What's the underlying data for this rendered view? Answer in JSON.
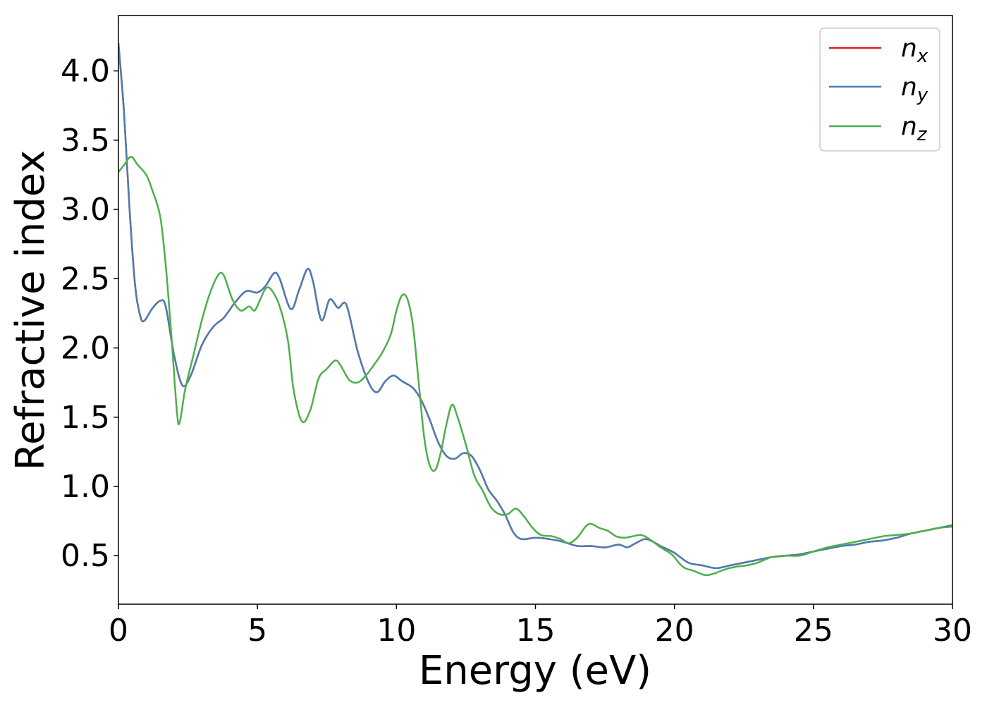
{
  "chart_data": {
    "type": "line",
    "title": "",
    "xlabel": "Energy (eV)",
    "ylabel": "Refractive index",
    "xlim": [
      0,
      30
    ],
    "ylim": [
      0.15,
      4.4
    ],
    "xticks": [
      0,
      5,
      10,
      15,
      20,
      25,
      30
    ],
    "xtick_labels": [
      "0",
      "5",
      "10",
      "15",
      "20",
      "25",
      "30"
    ],
    "yticks": [
      0.5,
      1.0,
      1.5,
      2.0,
      2.5,
      3.0,
      3.5,
      4.0
    ],
    "ytick_labels": [
      "0.5",
      "1.0",
      "1.5",
      "2.0",
      "2.5",
      "3.0",
      "3.5",
      "4.0"
    ],
    "grid": false,
    "legend_position": "top-right",
    "series": [
      {
        "name": "n_x",
        "legend_base": "n",
        "legend_sub": "x",
        "color": "#e41a1c",
        "points": [
          [
            0,
            4.2
          ],
          [
            0.2,
            3.7
          ],
          [
            0.4,
            3.0
          ],
          [
            0.6,
            2.45
          ],
          [
            0.8,
            2.22
          ],
          [
            0.95,
            2.2
          ],
          [
            1.2,
            2.28
          ],
          [
            1.5,
            2.34
          ],
          [
            1.7,
            2.3
          ],
          [
            2.0,
            1.95
          ],
          [
            2.3,
            1.73
          ],
          [
            2.6,
            1.8
          ],
          [
            3.0,
            2.02
          ],
          [
            3.4,
            2.15
          ],
          [
            3.8,
            2.22
          ],
          [
            4.2,
            2.33
          ],
          [
            4.6,
            2.41
          ],
          [
            5.0,
            2.4
          ],
          [
            5.3,
            2.45
          ],
          [
            5.6,
            2.54
          ],
          [
            5.8,
            2.5
          ],
          [
            6.2,
            2.28
          ],
          [
            6.5,
            2.42
          ],
          [
            6.8,
            2.57
          ],
          [
            7.0,
            2.48
          ],
          [
            7.3,
            2.2
          ],
          [
            7.6,
            2.35
          ],
          [
            7.9,
            2.29
          ],
          [
            8.2,
            2.31
          ],
          [
            8.6,
            1.98
          ],
          [
            9.0,
            1.75
          ],
          [
            9.3,
            1.68
          ],
          [
            9.6,
            1.76
          ],
          [
            9.9,
            1.8
          ],
          [
            10.2,
            1.76
          ],
          [
            10.6,
            1.71
          ],
          [
            10.9,
            1.62
          ],
          [
            11.2,
            1.48
          ],
          [
            11.5,
            1.32
          ],
          [
            11.8,
            1.22
          ],
          [
            12.1,
            1.2
          ],
          [
            12.4,
            1.24
          ],
          [
            12.7,
            1.22
          ],
          [
            13.0,
            1.12
          ],
          [
            13.3,
            0.98
          ],
          [
            13.6,
            0.9
          ],
          [
            13.9,
            0.8
          ],
          [
            14.2,
            0.67
          ],
          [
            14.5,
            0.62
          ],
          [
            15.0,
            0.63
          ],
          [
            15.5,
            0.62
          ],
          [
            16.0,
            0.6
          ],
          [
            16.5,
            0.57
          ],
          [
            17.0,
            0.57
          ],
          [
            17.5,
            0.56
          ],
          [
            18.0,
            0.58
          ],
          [
            18.3,
            0.56
          ],
          [
            18.6,
            0.59
          ],
          [
            19.0,
            0.62
          ],
          [
            19.5,
            0.57
          ],
          [
            20.0,
            0.52
          ],
          [
            20.5,
            0.45
          ],
          [
            21.0,
            0.43
          ],
          [
            21.5,
            0.41
          ],
          [
            22.0,
            0.43
          ],
          [
            22.5,
            0.45
          ],
          [
            23.0,
            0.47
          ],
          [
            23.5,
            0.49
          ],
          [
            24.0,
            0.5
          ],
          [
            24.5,
            0.51
          ],
          [
            25.0,
            0.53
          ],
          [
            25.5,
            0.55
          ],
          [
            26.0,
            0.57
          ],
          [
            26.5,
            0.58
          ],
          [
            27.0,
            0.6
          ],
          [
            27.5,
            0.61
          ],
          [
            28.0,
            0.63
          ],
          [
            28.5,
            0.66
          ],
          [
            29.0,
            0.68
          ],
          [
            29.5,
            0.7
          ],
          [
            30.0,
            0.72
          ]
        ]
      },
      {
        "name": "n_y",
        "legend_base": "n",
        "legend_sub": "y",
        "color": "#4a7eb4",
        "points": [
          [
            0,
            4.2
          ],
          [
            0.2,
            3.7
          ],
          [
            0.4,
            3.0
          ],
          [
            0.6,
            2.45
          ],
          [
            0.8,
            2.22
          ],
          [
            0.95,
            2.2
          ],
          [
            1.2,
            2.28
          ],
          [
            1.5,
            2.34
          ],
          [
            1.7,
            2.3
          ],
          [
            2.0,
            1.95
          ],
          [
            2.3,
            1.73
          ],
          [
            2.6,
            1.8
          ],
          [
            3.0,
            2.02
          ],
          [
            3.4,
            2.15
          ],
          [
            3.8,
            2.22
          ],
          [
            4.2,
            2.33
          ],
          [
            4.6,
            2.41
          ],
          [
            5.0,
            2.4
          ],
          [
            5.3,
            2.45
          ],
          [
            5.6,
            2.54
          ],
          [
            5.8,
            2.5
          ],
          [
            6.2,
            2.28
          ],
          [
            6.5,
            2.42
          ],
          [
            6.8,
            2.57
          ],
          [
            7.0,
            2.48
          ],
          [
            7.3,
            2.2
          ],
          [
            7.6,
            2.35
          ],
          [
            7.9,
            2.29
          ],
          [
            8.2,
            2.31
          ],
          [
            8.6,
            1.98
          ],
          [
            9.0,
            1.75
          ],
          [
            9.3,
            1.68
          ],
          [
            9.6,
            1.76
          ],
          [
            9.9,
            1.8
          ],
          [
            10.2,
            1.76
          ],
          [
            10.6,
            1.71
          ],
          [
            10.9,
            1.62
          ],
          [
            11.2,
            1.48
          ],
          [
            11.5,
            1.32
          ],
          [
            11.8,
            1.22
          ],
          [
            12.1,
            1.2
          ],
          [
            12.4,
            1.24
          ],
          [
            12.7,
            1.22
          ],
          [
            13.0,
            1.12
          ],
          [
            13.3,
            0.98
          ],
          [
            13.6,
            0.9
          ],
          [
            13.9,
            0.8
          ],
          [
            14.2,
            0.67
          ],
          [
            14.5,
            0.62
          ],
          [
            15.0,
            0.63
          ],
          [
            15.5,
            0.62
          ],
          [
            16.0,
            0.6
          ],
          [
            16.5,
            0.57
          ],
          [
            17.0,
            0.57
          ],
          [
            17.5,
            0.56
          ],
          [
            18.0,
            0.58
          ],
          [
            18.3,
            0.56
          ],
          [
            18.6,
            0.59
          ],
          [
            19.0,
            0.62
          ],
          [
            19.5,
            0.57
          ],
          [
            20.0,
            0.52
          ],
          [
            20.5,
            0.45
          ],
          [
            21.0,
            0.43
          ],
          [
            21.5,
            0.41
          ],
          [
            22.0,
            0.43
          ],
          [
            22.5,
            0.45
          ],
          [
            23.0,
            0.47
          ],
          [
            23.5,
            0.49
          ],
          [
            24.0,
            0.5
          ],
          [
            24.5,
            0.51
          ],
          [
            25.0,
            0.53
          ],
          [
            25.5,
            0.55
          ],
          [
            26.0,
            0.57
          ],
          [
            26.5,
            0.58
          ],
          [
            27.0,
            0.6
          ],
          [
            27.5,
            0.61
          ],
          [
            28.0,
            0.63
          ],
          [
            28.5,
            0.66
          ],
          [
            29.0,
            0.68
          ],
          [
            29.5,
            0.7
          ],
          [
            30.0,
            0.72
          ]
        ]
      },
      {
        "name": "n_z",
        "legend_base": "n",
        "legend_sub": "z",
        "color": "#4daf4a",
        "points": [
          [
            0,
            3.27
          ],
          [
            0.2,
            3.32
          ],
          [
            0.45,
            3.38
          ],
          [
            0.7,
            3.32
          ],
          [
            1.0,
            3.25
          ],
          [
            1.2,
            3.15
          ],
          [
            1.5,
            2.95
          ],
          [
            1.7,
            2.6
          ],
          [
            1.9,
            2.1
          ],
          [
            2.1,
            1.55
          ],
          [
            2.2,
            1.46
          ],
          [
            2.4,
            1.7
          ],
          [
            2.7,
            1.95
          ],
          [
            3.0,
            2.2
          ],
          [
            3.3,
            2.4
          ],
          [
            3.6,
            2.53
          ],
          [
            3.8,
            2.52
          ],
          [
            4.1,
            2.35
          ],
          [
            4.4,
            2.27
          ],
          [
            4.7,
            2.3
          ],
          [
            4.9,
            2.27
          ],
          [
            5.1,
            2.35
          ],
          [
            5.3,
            2.43
          ],
          [
            5.5,
            2.42
          ],
          [
            5.8,
            2.3
          ],
          [
            6.1,
            2.05
          ],
          [
            6.3,
            1.7
          ],
          [
            6.6,
            1.47
          ],
          [
            6.9,
            1.55
          ],
          [
            7.2,
            1.78
          ],
          [
            7.5,
            1.85
          ],
          [
            7.8,
            1.91
          ],
          [
            8.0,
            1.87
          ],
          [
            8.3,
            1.77
          ],
          [
            8.6,
            1.75
          ],
          [
            8.9,
            1.8
          ],
          [
            9.2,
            1.88
          ],
          [
            9.5,
            1.97
          ],
          [
            9.8,
            2.1
          ],
          [
            10.0,
            2.27
          ],
          [
            10.2,
            2.38
          ],
          [
            10.4,
            2.35
          ],
          [
            10.6,
            2.15
          ],
          [
            10.8,
            1.75
          ],
          [
            11.0,
            1.35
          ],
          [
            11.2,
            1.15
          ],
          [
            11.4,
            1.12
          ],
          [
            11.6,
            1.25
          ],
          [
            11.8,
            1.45
          ],
          [
            12.0,
            1.59
          ],
          [
            12.2,
            1.5
          ],
          [
            12.5,
            1.3
          ],
          [
            12.8,
            1.08
          ],
          [
            13.1,
            0.97
          ],
          [
            13.4,
            0.85
          ],
          [
            13.7,
            0.8
          ],
          [
            14.0,
            0.8
          ],
          [
            14.3,
            0.84
          ],
          [
            14.6,
            0.78
          ],
          [
            14.9,
            0.7
          ],
          [
            15.2,
            0.65
          ],
          [
            15.6,
            0.64
          ],
          [
            15.9,
            0.62
          ],
          [
            16.2,
            0.59
          ],
          [
            16.5,
            0.63
          ],
          [
            16.8,
            0.71
          ],
          [
            17.0,
            0.73
          ],
          [
            17.3,
            0.7
          ],
          [
            17.6,
            0.68
          ],
          [
            17.9,
            0.64
          ],
          [
            18.2,
            0.63
          ],
          [
            18.5,
            0.64
          ],
          [
            18.8,
            0.65
          ],
          [
            19.1,
            0.62
          ],
          [
            19.5,
            0.56
          ],
          [
            19.9,
            0.51
          ],
          [
            20.3,
            0.42
          ],
          [
            20.7,
            0.39
          ],
          [
            21.1,
            0.36
          ],
          [
            21.4,
            0.37
          ],
          [
            21.8,
            0.4
          ],
          [
            22.2,
            0.42
          ],
          [
            22.6,
            0.43
          ],
          [
            23.0,
            0.45
          ],
          [
            23.5,
            0.49
          ],
          [
            24.0,
            0.5
          ],
          [
            24.5,
            0.5
          ],
          [
            25.0,
            0.53
          ],
          [
            25.5,
            0.56
          ],
          [
            26.0,
            0.58
          ],
          [
            26.5,
            0.6
          ],
          [
            27.0,
            0.62
          ],
          [
            27.5,
            0.64
          ],
          [
            28.0,
            0.65
          ],
          [
            28.5,
            0.66
          ],
          [
            29.0,
            0.68
          ],
          [
            29.5,
            0.7
          ],
          [
            30.0,
            0.71
          ]
        ]
      }
    ]
  }
}
